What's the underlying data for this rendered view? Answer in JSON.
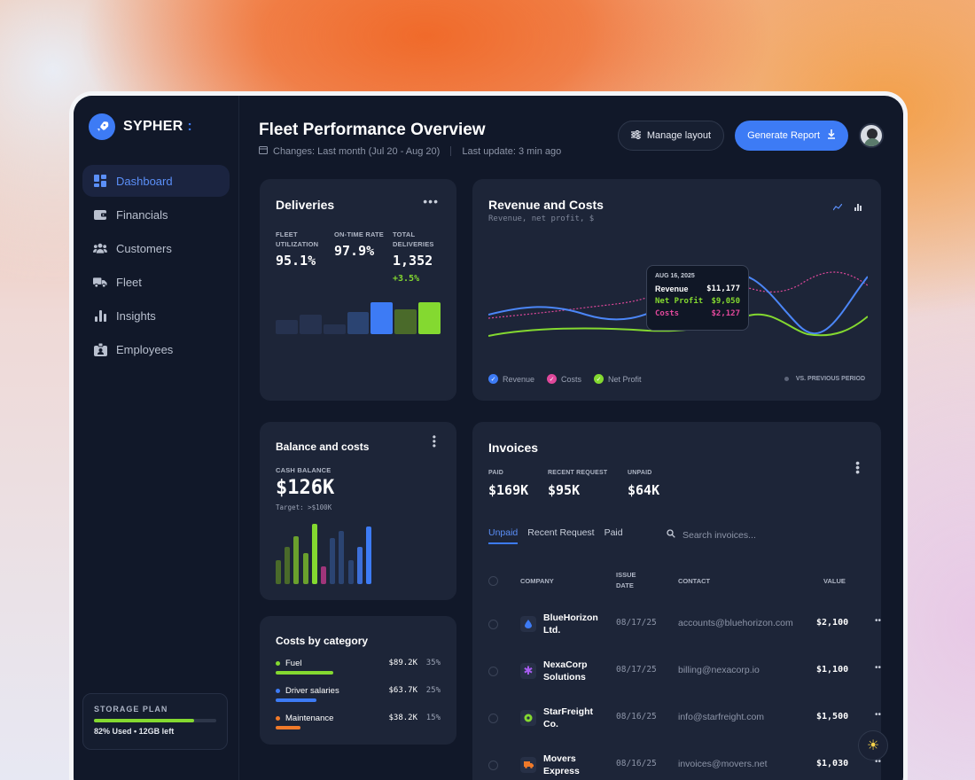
{
  "brand": {
    "name": "SYPHER",
    "suffix": ":"
  },
  "nav": {
    "items": [
      {
        "label": "Dashboard",
        "icon": "grid-icon"
      },
      {
        "label": "Financials",
        "icon": "wallet-icon"
      },
      {
        "label": "Customers",
        "icon": "users-icon"
      },
      {
        "label": "Fleet",
        "icon": "truck-icon"
      },
      {
        "label": "Insights",
        "icon": "bar-chart-icon"
      },
      {
        "label": "Employees",
        "icon": "id-badge-icon"
      }
    ],
    "active": "Dashboard"
  },
  "storage": {
    "title": "STORAGE PLAN",
    "used_fraction": 0.82,
    "text": "82% Used • 12GB left"
  },
  "header": {
    "title": "Fleet Performance Overview",
    "changes": "Changes: Last month (Jul 20 - Aug 20)",
    "last_update": "Last update: 3 min ago",
    "manage_layout": "Manage layout",
    "generate_report": "Generate Report"
  },
  "deliveries": {
    "title": "Deliveries",
    "fleet_util_label1": "FLEET",
    "fleet_util_label2": "UTILIZATION",
    "fleet_util_value": "95.1%",
    "on_time_label": "ON-TIME RATE",
    "on_time_value": "97.9%",
    "total_label1": "TOTAL",
    "total_label2": "DELIVERIES",
    "total_value": "1,352",
    "delta": "+3.5%",
    "bars": [
      {
        "value": 0.45,
        "color": "#26324f"
      },
      {
        "value": 0.62,
        "color": "#26324f"
      },
      {
        "value": 0.3,
        "color": "#26324f"
      },
      {
        "value": 0.7,
        "color": "#2b4472"
      },
      {
        "value": 1.0,
        "color": "#3d7bf5"
      },
      {
        "value": 0.78,
        "color": "#4a6a2a"
      },
      {
        "value": 1.0,
        "color": "#84d930"
      }
    ]
  },
  "revenue": {
    "title": "Revenue and Costs",
    "subtitle": "Revenue, net profit, $",
    "tooltip": {
      "date": "AUG 16, 2025",
      "rows": [
        {
          "label": "Revenue",
          "value": "$11,177",
          "color": "#ffffff"
        },
        {
          "label": "Net Profit",
          "value": "$9,050",
          "color": "#84d930"
        },
        {
          "label": "Costs",
          "value": "$2,127",
          "color": "#e0489b"
        }
      ]
    },
    "legend": [
      {
        "label": "Revenue",
        "color": "#3d7bf5"
      },
      {
        "label": "Costs",
        "color": "#e0489b"
      },
      {
        "label": "Net Profit",
        "color": "#84d930"
      }
    ],
    "vs_label": "VS. PREVIOUS PERIOD"
  },
  "balance": {
    "title": "Balance and costs",
    "kicker": "CASH BALANCE",
    "value": "$126K",
    "target": "Target: >$100K",
    "bars": [
      {
        "value": 0.4,
        "color": "#4a6a2a"
      },
      {
        "value": 0.62,
        "color": "#4a6a2a"
      },
      {
        "value": 0.8,
        "color": "#6aa02d"
      },
      {
        "value": 0.52,
        "color": "#6aa02d"
      },
      {
        "value": 1.0,
        "color": "#84d930"
      },
      {
        "value": 0.3,
        "color": "#a0357a"
      },
      {
        "value": 0.76,
        "color": "#2b4472"
      },
      {
        "value": 0.88,
        "color": "#2b4472"
      },
      {
        "value": 0.4,
        "color": "#2b4472"
      },
      {
        "value": 0.62,
        "color": "#3d6fd8"
      },
      {
        "value": 0.95,
        "color": "#3d7bf5"
      }
    ]
  },
  "costs": {
    "title": "Costs by category",
    "rows": [
      {
        "name": "Fuel",
        "amount": "$89.2K",
        "pct": "35%",
        "share": 0.35,
        "color": "#84d930"
      },
      {
        "name": "Driver salaries",
        "amount": "$63.7K",
        "pct": "25%",
        "share": 0.25,
        "color": "#3d7bf5"
      },
      {
        "name": "Maintenance",
        "amount": "$38.2K",
        "pct": "15%",
        "share": 0.15,
        "color": "#f07a2a"
      }
    ]
  },
  "invoices": {
    "title": "Invoices",
    "stats": [
      {
        "label": "PAID",
        "value": "$169K"
      },
      {
        "label": "RECENT REQUEST",
        "value": "$95K"
      },
      {
        "label": "UNPAID",
        "value": "$64K"
      }
    ],
    "tabs": [
      "Unpaid",
      "Recent Request",
      "Paid"
    ],
    "active_tab": "Unpaid",
    "search_placeholder": "Search invoices...",
    "columns": {
      "company": "COMPANY",
      "issue1": "ISSUE",
      "issue2": "DATE",
      "contact": "CONTACT",
      "value": "VALUE"
    },
    "rows": [
      {
        "company1": "BlueHorizon",
        "company2": "Ltd.",
        "date": "08/17/25",
        "contact": "accounts@bluehorizon.com",
        "value": "$2,100",
        "icon": "droplet-icon",
        "icon_color": "#3d7bf5"
      },
      {
        "company1": "NexaCorp",
        "company2": "Solutions",
        "date": "08/17/25",
        "contact": "billing@nexacorp.io",
        "value": "$1,100",
        "icon": "asterisk-icon",
        "icon_color": "#a75cf0"
      },
      {
        "company1": "StarFreight",
        "company2": "Co.",
        "date": "08/16/25",
        "contact": "info@starfreight.com",
        "value": "$1,500",
        "icon": "circle-icon",
        "icon_color": "#84d930"
      },
      {
        "company1": "Movers",
        "company2": "Express",
        "date": "08/16/25",
        "contact": "invoices@movers.net",
        "value": "$1,030",
        "icon": "truck-icon",
        "icon_color": "#f07a2a"
      }
    ]
  }
}
